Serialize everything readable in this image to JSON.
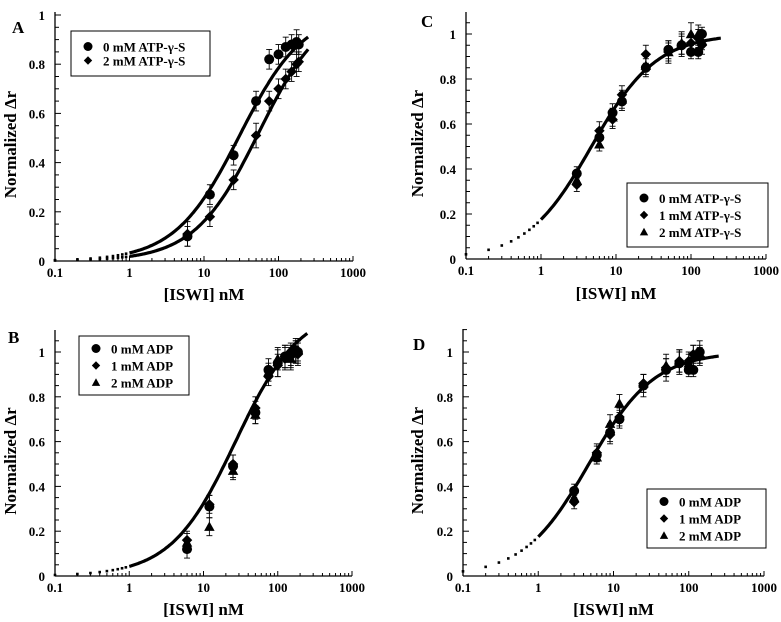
{
  "colors": {
    "ink": "#000000",
    "background": "#ffffff"
  },
  "chart_data": [
    {
      "panel": "A",
      "type": "scatter",
      "xscale": "log",
      "xlabel": "[ISWI] nM",
      "ylabel": "Normalized Δr",
      "xlim": [
        0.1,
        1000
      ],
      "ylim": [
        0,
        1
      ],
      "xticks": [
        "0.1",
        "1",
        "10",
        "100",
        "1000"
      ],
      "yticks": [
        "0",
        "0.2",
        "0.4",
        "0.6",
        "0.8",
        "1"
      ],
      "legend": {
        "placement": "top-left"
      },
      "series": [
        {
          "name": "0 mM ATP-γ-S",
          "marker": "circle",
          "fit_Kd": 30,
          "fit_max": 1.02,
          "x": [
            6,
            12,
            25,
            50,
            75,
            100,
            125,
            150,
            175,
            187
          ],
          "y": [
            0.1,
            0.27,
            0.43,
            0.65,
            0.82,
            0.84,
            0.87,
            0.88,
            0.89,
            0.88
          ],
          "err": [
            0.04,
            0.04,
            0.04,
            0.04,
            0.04,
            0.04,
            0.04,
            0.04,
            0.05,
            0.04
          ]
        },
        {
          "name": "2 mM ATP-γ-S",
          "marker": "diamond",
          "fit_Kd": 55,
          "fit_max": 1.05,
          "x": [
            6,
            12,
            25,
            50,
            75,
            100,
            125,
            150,
            175,
            187
          ],
          "y": [
            0.11,
            0.18,
            0.33,
            0.51,
            0.65,
            0.7,
            0.74,
            0.77,
            0.8,
            0.81
          ],
          "err": [
            0.05,
            0.04,
            0.04,
            0.05,
            0.04,
            0.04,
            0.04,
            0.04,
            0.05,
            0.04
          ]
        }
      ]
    },
    {
      "panel": "B",
      "type": "scatter",
      "xscale": "log",
      "xlabel": "[ISWI] nM",
      "ylabel": "Normalized Δr",
      "xlim": [
        0.1,
        1000
      ],
      "ylim": [
        0,
        1.1
      ],
      "xticks": [
        "0.1",
        "1",
        "10",
        "100",
        "1000"
      ],
      "yticks": [
        "0",
        "0.2",
        "0.4",
        "0.6",
        "0.8",
        "1"
      ],
      "legend": {
        "placement": "top-left"
      },
      "series": [
        {
          "name": "0 mM ADP",
          "marker": "circle",
          "fit_Kd": 27,
          "fit_max": 1.2,
          "x": [
            6,
            12,
            25,
            50,
            75,
            100,
            125,
            150,
            175,
            187
          ],
          "y": [
            0.12,
            0.31,
            0.49,
            0.73,
            0.92,
            0.95,
            0.98,
            0.99,
            1.0,
            1.0
          ],
          "err": [
            0.04,
            0.05,
            0.05,
            0.05,
            0.05,
            0.06,
            0.05,
            0.05,
            0.05,
            0.05
          ]
        },
        {
          "name": "1 mM ADP",
          "marker": "diamond",
          "fit_Kd": 27,
          "fit_max": 1.2,
          "x": [
            6,
            12,
            25,
            50,
            75,
            100,
            125,
            150,
            175,
            187
          ],
          "y": [
            0.16,
            0.32,
            0.5,
            0.75,
            0.89,
            0.94,
            0.97,
            0.98,
            1.01,
            0.99
          ],
          "err": [
            0.04,
            0.04,
            0.04,
            0.05,
            0.04,
            0.05,
            0.05,
            0.05,
            0.05,
            0.05
          ]
        },
        {
          "name": "2 mM ADP",
          "marker": "triangle",
          "fit_Kd": 27,
          "fit_max": 1.2,
          "x": [
            6,
            12,
            25,
            50,
            75,
            100,
            125,
            150,
            175,
            187
          ],
          "y": [
            0.15,
            0.22,
            0.47,
            0.72,
            0.91,
            0.97,
            0.98,
            0.97,
            1.0,
            1.01
          ],
          "err": [
            0.04,
            0.04,
            0.04,
            0.04,
            0.04,
            0.05,
            0.05,
            0.05,
            0.05,
            0.05
          ]
        }
      ]
    },
    {
      "panel": "C",
      "type": "scatter",
      "xscale": "log",
      "xlabel": "[ISWI] nM",
      "ylabel": "Normalized Δr",
      "xlim": [
        0.1,
        1000
      ],
      "ylim": [
        0,
        1.1
      ],
      "xticks": [
        "0.1",
        "1",
        "10",
        "100",
        "1000"
      ],
      "yticks": [
        "0",
        "0.2",
        "0.4",
        "0.6",
        "0.8",
        "1"
      ],
      "legend": {
        "placement": "bottom-right"
      },
      "series": [
        {
          "name": "0 mM ATP-γ-S",
          "marker": "circle",
          "fit_Kd": 4.7,
          "fit_max": 1.0,
          "x": [
            3,
            6,
            9,
            12,
            25,
            50,
            75,
            100,
            125,
            140
          ],
          "y": [
            0.38,
            0.54,
            0.65,
            0.7,
            0.85,
            0.93,
            0.95,
            0.92,
            0.92,
            1.0
          ],
          "err": [
            0.03,
            0.04,
            0.04,
            0.04,
            0.04,
            0.04,
            0.05,
            0.03,
            0.03,
            0.03
          ]
        },
        {
          "name": "1 mM ATP-γ-S",
          "marker": "diamond",
          "fit_Kd": 4.7,
          "fit_max": 1.0,
          "x": [
            3,
            6,
            9,
            12,
            25,
            50,
            75,
            100,
            125,
            140
          ],
          "y": [
            0.33,
            0.57,
            0.62,
            0.73,
            0.91,
            0.92,
            0.95,
            0.96,
            0.98,
            0.95
          ],
          "err": [
            0.03,
            0.04,
            0.04,
            0.04,
            0.04,
            0.04,
            0.04,
            0.04,
            0.04,
            0.04
          ]
        },
        {
          "name": "2 mM ATP-γ-S",
          "marker": "triangle",
          "fit_Kd": 4.7,
          "fit_max": 1.0,
          "x": [
            3,
            6,
            9,
            12,
            25,
            50,
            75,
            100,
            125,
            140
          ],
          "y": [
            0.35,
            0.51,
            0.63,
            0.71,
            0.86,
            0.92,
            0.96,
            1.0,
            1.0,
            0.97
          ],
          "err": [
            0.03,
            0.03,
            0.04,
            0.04,
            0.04,
            0.05,
            0.05,
            0.05,
            0.04,
            0.04
          ]
        }
      ]
    },
    {
      "panel": "D",
      "type": "scatter",
      "xscale": "log",
      "xlabel": "[ISWI] nM",
      "ylabel": "Normalized Δr",
      "xlim": [
        0.1,
        1000
      ],
      "ylim": [
        0,
        1.1
      ],
      "xticks": [
        "0.1",
        "1",
        "10",
        "100",
        "1000"
      ],
      "yticks": [
        "0",
        "0.2",
        "0.4",
        "0.6",
        "0.8",
        "1"
      ],
      "legend": {
        "placement": "bottom-right"
      },
      "series": [
        {
          "name": "0 mM ADP",
          "marker": "circle",
          "fit_Kd": 4.7,
          "fit_max": 1.0,
          "x": [
            3,
            6,
            9,
            12,
            25,
            50,
            75,
            100,
            115,
            140
          ],
          "y": [
            0.38,
            0.54,
            0.64,
            0.7,
            0.85,
            0.92,
            0.95,
            0.92,
            0.92,
            1.0
          ],
          "err": [
            0.03,
            0.04,
            0.04,
            0.04,
            0.05,
            0.05,
            0.05,
            0.03,
            0.03,
            0.05
          ]
        },
        {
          "name": "1 mM ADP",
          "marker": "diamond",
          "fit_Kd": 4.7,
          "fit_max": 1.0,
          "x": [
            3,
            6,
            9,
            12,
            25,
            50,
            75,
            100,
            115,
            140
          ],
          "y": [
            0.33,
            0.55,
            0.63,
            0.71,
            0.86,
            0.93,
            0.96,
            0.96,
            0.99,
            0.98
          ],
          "err": [
            0.03,
            0.04,
            0.04,
            0.04,
            0.04,
            0.04,
            0.05,
            0.04,
            0.04,
            0.04
          ]
        },
        {
          "name": "2 mM ADP",
          "marker": "triangle",
          "fit_Kd": 4.7,
          "fit_max": 1.0,
          "x": [
            3,
            6,
            9,
            12,
            25,
            50,
            75,
            100,
            115,
            140
          ],
          "y": [
            0.35,
            0.53,
            0.68,
            0.77,
            0.86,
            0.94,
            0.96,
            0.95,
            0.98,
            0.99
          ],
          "err": [
            0.03,
            0.03,
            0.04,
            0.04,
            0.04,
            0.05,
            0.05,
            0.04,
            0.05,
            0.04
          ]
        }
      ]
    }
  ]
}
